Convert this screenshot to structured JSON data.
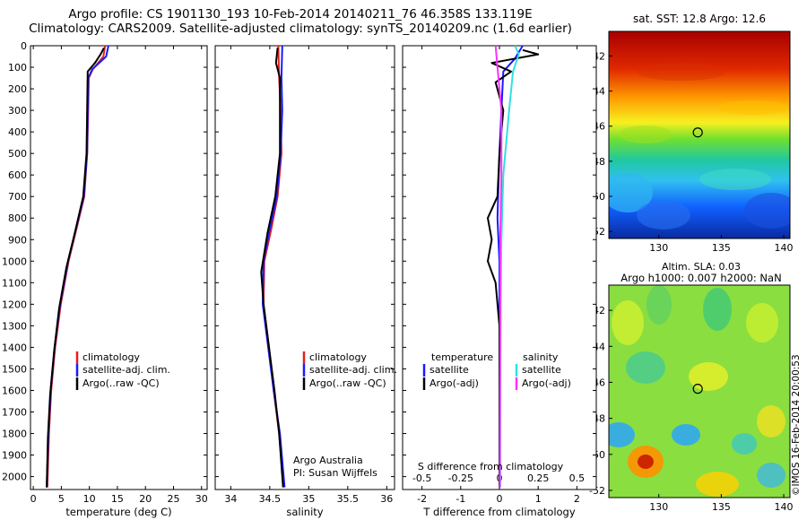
{
  "header": {
    "title_line1": "Argo profile: CS 1901130_193 10-Feb-2014 20140211_76 46.358S 133.119E",
    "title_line2": "Climatology: CARS2009. Satellite-adjusted climatology: synTS_20140209.nc (1.6d earlier)"
  },
  "colors": {
    "climatology": "#e02020",
    "satellite": "#1a1aff",
    "argo": "#000000",
    "salinity_satellite": "#30e0e0",
    "salinity_argo": "#ff30ff"
  },
  "chart_data": [
    {
      "type": "line",
      "id": "temperature",
      "xlabel": "temperature (deg C)",
      "ylabel": "",
      "xlim": [
        -0.5,
        31
      ],
      "ylim": [
        2060,
        0
      ],
      "xticks": [
        0,
        5,
        10,
        15,
        20,
        25,
        30
      ],
      "yticks": [
        0,
        100,
        200,
        300,
        400,
        500,
        600,
        700,
        800,
        900,
        1000,
        1100,
        1200,
        1300,
        1400,
        1500,
        1600,
        1700,
        1800,
        1900,
        2000
      ],
      "legend": [
        "climatology",
        "satellite-adj. clim.",
        "Argo(..raw -QC)"
      ],
      "series": [
        {
          "name": "climatology",
          "color": "#e02020",
          "points": [
            [
              12.8,
              0
            ],
            [
              12.5,
              50
            ],
            [
              10.6,
              110
            ],
            [
              9.9,
              150
            ],
            [
              9.8,
              300
            ],
            [
              9.6,
              500
            ],
            [
              9.1,
              700
            ],
            [
              7.7,
              850
            ],
            [
              6.3,
              1000
            ],
            [
              4.9,
              1200
            ],
            [
              3.9,
              1400
            ],
            [
              3.2,
              1600
            ],
            [
              2.8,
              1800
            ],
            [
              2.5,
              2050
            ]
          ]
        },
        {
          "name": "satellite-adj. clim.",
          "color": "#1a1aff",
          "points": [
            [
              13.4,
              0
            ],
            [
              13.0,
              50
            ],
            [
              10.5,
              110
            ],
            [
              9.8,
              150
            ],
            [
              9.7,
              300
            ],
            [
              9.6,
              500
            ],
            [
              9.0,
              700
            ],
            [
              7.6,
              850
            ],
            [
              6.2,
              1000
            ],
            [
              4.8,
              1200
            ],
            [
              3.8,
              1400
            ],
            [
              3.1,
              1600
            ],
            [
              2.7,
              1800
            ],
            [
              2.4,
              2050
            ]
          ]
        },
        {
          "name": "Argo(..raw -QC)",
          "color": "#000000",
          "points": [
            [
              12.6,
              10
            ],
            [
              12.0,
              40
            ],
            [
              11.0,
              80
            ],
            [
              9.7,
              120
            ],
            [
              9.6,
              300
            ],
            [
              9.5,
              500
            ],
            [
              8.9,
              700
            ],
            [
              7.3,
              880
            ],
            [
              5.9,
              1030
            ],
            [
              4.6,
              1220
            ],
            [
              3.7,
              1420
            ],
            [
              3.0,
              1620
            ],
            [
              2.6,
              1820
            ],
            [
              2.4,
              2050
            ]
          ]
        }
      ]
    },
    {
      "type": "line",
      "id": "salinity",
      "xlabel": "salinity",
      "xlim": [
        33.8,
        36.1
      ],
      "ylim": [
        2060,
        0
      ],
      "xticks": [
        34,
        34.5,
        35,
        35.5,
        36
      ],
      "legend": [
        "climatology",
        "satellite-adj. clim.",
        "Argo(..raw -QC)"
      ],
      "annotation": [
        "Argo Australia",
        "PI: Susan Wijffels"
      ],
      "series": [
        {
          "name": "climatology",
          "color": "#e02020",
          "points": [
            [
              34.61,
              0
            ],
            [
              34.62,
              150
            ],
            [
              34.64,
              300
            ],
            [
              34.65,
              500
            ],
            [
              34.6,
              700
            ],
            [
              34.52,
              850
            ],
            [
              34.43,
              1000
            ],
            [
              34.42,
              1200
            ],
            [
              34.49,
              1400
            ],
            [
              34.55,
              1600
            ],
            [
              34.62,
              1800
            ],
            [
              34.68,
              2050
            ]
          ]
        },
        {
          "name": "satellite-adj. clim.",
          "color": "#1a1aff",
          "points": [
            [
              34.66,
              0
            ],
            [
              34.65,
              150
            ],
            [
              34.66,
              300
            ],
            [
              34.64,
              500
            ],
            [
              34.59,
              700
            ],
            [
              34.5,
              850
            ],
            [
              34.42,
              1000
            ],
            [
              34.41,
              1200
            ],
            [
              34.48,
              1400
            ],
            [
              34.55,
              1600
            ],
            [
              34.63,
              1800
            ],
            [
              34.69,
              2050
            ]
          ]
        },
        {
          "name": "Argo(..raw -QC)",
          "color": "#000000",
          "points": [
            [
              34.6,
              10
            ],
            [
              34.58,
              80
            ],
            [
              34.63,
              150
            ],
            [
              34.63,
              300
            ],
            [
              34.63,
              500
            ],
            [
              34.57,
              700
            ],
            [
              34.47,
              870
            ],
            [
              34.39,
              1050
            ],
            [
              34.42,
              1200
            ],
            [
              34.49,
              1400
            ],
            [
              34.56,
              1600
            ],
            [
              34.62,
              1800
            ],
            [
              34.67,
              2050
            ]
          ]
        }
      ]
    },
    {
      "type": "line",
      "id": "difference",
      "xlabel": "T difference from climatology",
      "xlim": [
        -2.5,
        2.5
      ],
      "ylim": [
        2060,
        0
      ],
      "xticks": [
        -2,
        -1,
        0,
        1,
        2
      ],
      "top_axis_label": "S difference from climatology",
      "top_ticks": [
        "-0.5",
        "-0.25",
        "0",
        "0.25",
        "0.5"
      ],
      "legend_titles": [
        "temperature",
        "salinity"
      ],
      "legend": [
        "satellite",
        "Argo(-adj)",
        "satellite",
        "Argo(-adj)"
      ],
      "series": [
        {
          "name": "satellite",
          "color": "#1a1aff",
          "points": [
            [
              0.6,
              0
            ],
            [
              0.4,
              60
            ],
            [
              0.1,
              120
            ],
            [
              0.05,
              300
            ],
            [
              0.0,
              500
            ],
            [
              -0.05,
              800
            ],
            [
              0.0,
              1000
            ],
            [
              0.0,
              1500
            ],
            [
              0.0,
              2050
            ]
          ]
        },
        {
          "name": "Argo(-adj)",
          "color": "#000000",
          "points": [
            [
              0.6,
              20
            ],
            [
              1.0,
              40
            ],
            [
              -0.2,
              80
            ],
            [
              0.3,
              120
            ],
            [
              -0.1,
              170
            ],
            [
              0.1,
              300
            ],
            [
              0.0,
              500
            ],
            [
              -0.05,
              700
            ],
            [
              -0.3,
              800
            ],
            [
              -0.2,
              900
            ],
            [
              -0.3,
              1000
            ],
            [
              -0.1,
              1100
            ],
            [
              0.0,
              1300
            ],
            [
              0.0,
              2050
            ]
          ]
        },
        {
          "name": "satellite",
          "color": "#30e0e0",
          "points": [
            [
              0.4,
              0
            ],
            [
              0.5,
              40
            ],
            [
              0.35,
              120
            ],
            [
              0.25,
              300
            ],
            [
              0.1,
              600
            ],
            [
              0.05,
              900
            ],
            [
              0.03,
              1200
            ],
            [
              0.02,
              1600
            ],
            [
              0.02,
              2050
            ]
          ]
        },
        {
          "name": "Argo(-adj)",
          "color": "#ff30ff",
          "points": [
            [
              -0.1,
              0
            ],
            [
              -0.05,
              100
            ],
            [
              0.05,
              300
            ],
            [
              0.05,
              600
            ],
            [
              0.02,
              900
            ],
            [
              0.02,
              1300
            ],
            [
              0.01,
              2050
            ]
          ]
        }
      ]
    },
    {
      "type": "heatmap",
      "id": "sst_map",
      "title": "sat. SST: 12.8 Argo: 12.6",
      "xticks": [
        130,
        135,
        140
      ],
      "yticks": [
        -42,
        -44,
        -46,
        -48,
        -50,
        -52
      ],
      "xlim": [
        126,
        140.5
      ],
      "ylim": [
        -52.4,
        -40.6
      ],
      "marker": {
        "lon": 133.119,
        "lat": -46.358
      }
    },
    {
      "type": "heatmap",
      "id": "sla_map",
      "title_line1": "Altim. SLA: 0.03",
      "title_line2": "Argo h1000: 0.007 h2000: NaN",
      "xticks": [
        130,
        135,
        140
      ],
      "yticks": [
        -42,
        -44,
        -46,
        -48,
        -50,
        -52
      ],
      "xlim": [
        126,
        140.5
      ],
      "ylim": [
        -52.4,
        -40.6
      ],
      "marker": {
        "lon": 133.119,
        "lat": -46.358
      }
    }
  ],
  "footer": {
    "stamp": "©IMOS 16-Feb-2014 20:00:53"
  }
}
